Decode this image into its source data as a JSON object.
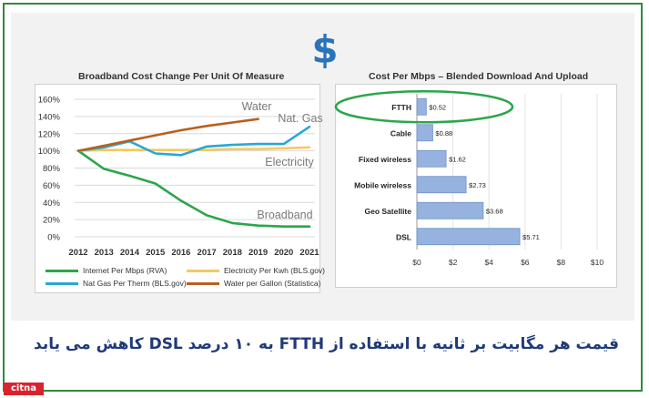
{
  "header": {
    "symbol": "$",
    "symbol_color": "#2b74b8"
  },
  "caption": {
    "text": "قیمت هر مگابیت بر ثانیه با استفاده از FTTH به ۱۰ درصد DSL کاهش می یابد",
    "color": "#1f3a7a"
  },
  "logo": {
    "text": "citna"
  },
  "chart_data": [
    {
      "type": "line",
      "title": "Broadband  Cost Change Per Unit Of Measure",
      "x": [
        2012,
        2013,
        2014,
        2015,
        2016,
        2017,
        2018,
        2019,
        2020,
        2021
      ],
      "ylim": [
        0,
        160
      ],
      "yticks": [
        "0%",
        "20%",
        "40%",
        "60%",
        "80%",
        "100%",
        "120%",
        "140%",
        "160%"
      ],
      "grid": true,
      "series": [
        {
          "name": "Internet Per Mbps (RVA)",
          "label": "Broadband",
          "color": "#2ca64a",
          "values": [
            100,
            79,
            71,
            62,
            42,
            25,
            16,
            13,
            12,
            12
          ]
        },
        {
          "name": "Electricity Per Kwh (BLS.gov)",
          "label": "Electricity",
          "color": "#f2c965",
          "values": [
            100,
            101,
            101,
            101,
            101,
            101,
            102,
            102,
            103,
            104
          ]
        },
        {
          "name": "Nat Gas Per Therm (BLS.gov)",
          "label": "Nat. Gas",
          "color": "#29a6d8",
          "values": [
            100,
            104,
            111,
            97,
            95,
            105,
            107,
            108,
            108,
            128
          ]
        },
        {
          "name": "Water per Gallon (Statistica)",
          "label": "Water",
          "color": "#b8601f",
          "values": [
            100,
            106,
            112,
            118,
            124,
            129,
            133,
            137,
            null,
            null
          ]
        }
      ],
      "legend_position": "bottom"
    },
    {
      "type": "bar",
      "orientation": "horizontal",
      "title": "Cost Per Mbps – Blended Download And Upload",
      "categories": [
        "FTTH",
        "Cable",
        "Fixed wireless",
        "Mobile wireless",
        "Geo Satellite",
        "DSL"
      ],
      "values": [
        0.52,
        0.88,
        1.62,
        2.73,
        3.68,
        5.71
      ],
      "labels": [
        "$0.52",
        "$0.88",
        "$1.62",
        "$2.73",
        "$3.68",
        "$5.71"
      ],
      "xlim": [
        0,
        10
      ],
      "xticks": [
        "$0",
        "$2",
        "$4",
        "$6",
        "$8",
        "$10"
      ],
      "bar_color": "#95b3de",
      "highlight": {
        "category": "FTTH",
        "color": "#2ca64a"
      }
    }
  ]
}
